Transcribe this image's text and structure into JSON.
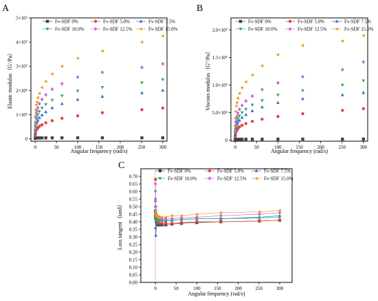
{
  "chart_data": [
    {
      "panel": "A",
      "type": "scatter",
      "xlabel": "Angular frequency (rad/s)",
      "ylabel": "Elastic modulus（G′/Pa）",
      "xlim": [
        -10,
        310
      ],
      "ylim": [
        -10000,
        500000
      ],
      "xticks": [
        0,
        50,
        100,
        150,
        200,
        250,
        300
      ],
      "yticks": [
        {
          "v": 0,
          "l": "0"
        },
        {
          "v": 100000,
          "l": "1×10⁵"
        },
        {
          "v": 200000,
          "l": "2×10⁵"
        },
        {
          "v": 300000,
          "l": "3×10⁵"
        },
        {
          "v": 400000,
          "l": "4×10⁵"
        },
        {
          "v": 500000,
          "l": "5×10⁵"
        }
      ],
      "x": [
        0.1,
        0.4,
        1,
        2.5,
        4,
        6.3,
        10,
        16,
        25,
        40,
        63,
        100,
        158,
        251,
        300
      ],
      "series": [
        {
          "name": "Fv-SDF 0%",
          "values": [
            2000,
            2500,
            3000,
            3200,
            3300,
            3400,
            3500,
            3600,
            3700,
            3800,
            3900,
            4000,
            4000,
            4000,
            4000
          ]
        },
        {
          "name": "Fv-SDF 5.0%",
          "values": [
            12000,
            22000,
            30000,
            37000,
            40000,
            45000,
            52000,
            58000,
            66000,
            75000,
            85000,
            95000,
            108000,
            120000,
            127000
          ]
        },
        {
          "name": "Fv-SDF 7.5%",
          "values": [
            22000,
            38000,
            52000,
            63000,
            68000,
            76000,
            87000,
            98000,
            111000,
            128000,
            145000,
            162000,
            175000,
            190000,
            200000
          ]
        },
        {
          "name": "Fv-SDF 10.0%",
          "values": [
            30000,
            52000,
            68000,
            82000,
            90000,
            100000,
            113000,
            127000,
            142000,
            160000,
            178000,
            198000,
            213000,
            232000,
            245000
          ]
        },
        {
          "name": "Fv-SDF 12.5%",
          "values": [
            40000,
            68000,
            88000,
            106000,
            115000,
            128000,
            145000,
            163000,
            182000,
            205000,
            228000,
            255000,
            275000,
            295000,
            310000
          ]
        },
        {
          "name": "Fv-SDF 15.0%",
          "values": [
            60000,
            95000,
            120000,
            140000,
            152000,
            170000,
            188000,
            212000,
            237000,
            268000,
            300000,
            333000,
            363000,
            400000,
            425000
          ]
        }
      ]
    },
    {
      "panel": "B",
      "type": "scatter",
      "xlabel": "Angular frequency (rad/s)",
      "ylabel": "Viscous modulus（G″/Pa）",
      "xlim": [
        -10,
        310
      ],
      "ylim": [
        -2000,
        222000
      ],
      "xticks": [
        0,
        50,
        100,
        150,
        200,
        250,
        300
      ],
      "yticks": [
        {
          "v": 0,
          "l": "0"
        },
        {
          "v": 50000,
          "l": "5.0×10⁴"
        },
        {
          "v": 100000,
          "l": "1.0×10⁵"
        },
        {
          "v": 150000,
          "l": "1.5×10⁵"
        },
        {
          "v": 200000,
          "l": "2.0×10⁵"
        }
      ],
      "x": [
        0.1,
        0.4,
        1,
        2.5,
        4,
        6.3,
        10,
        16,
        25,
        40,
        63,
        100,
        158,
        251,
        300
      ],
      "series": [
        {
          "name": "Fv-SDF 0%",
          "values": [
            800,
            1000,
            1200,
            1300,
            1400,
            1500,
            1500,
            1600,
            1600,
            1700,
            1700,
            1800,
            1800,
            1800,
            1800
          ]
        },
        {
          "name": "Fv-SDF 5.0%",
          "values": [
            6000,
            10000,
            13000,
            16000,
            18000,
            21000,
            24000,
            27000,
            30000,
            34000,
            38000,
            43000,
            48000,
            54000,
            57000
          ]
        },
        {
          "name": "Fv-SDF 7.5%",
          "values": [
            10000,
            16000,
            21000,
            25000,
            28000,
            32000,
            36000,
            41000,
            46000,
            53000,
            60000,
            68000,
            75000,
            82000,
            86000
          ]
        },
        {
          "name": "Fv-SDF 10.0%",
          "values": [
            13000,
            20000,
            26000,
            31000,
            34000,
            39000,
            44000,
            50000,
            56000,
            64000,
            72000,
            82000,
            90000,
            100000,
            108000
          ]
        },
        {
          "name": "Fv-SDF 12.5%",
          "values": [
            17000,
            26000,
            33000,
            39000,
            43000,
            49000,
            56000,
            63000,
            71000,
            80000,
            92000,
            104000,
            115000,
            128000,
            142000
          ]
        },
        {
          "name": "Fv-SDF 15.0%",
          "values": [
            25000,
            40000,
            52000,
            62000,
            68000,
            76000,
            85000,
            95000,
            106000,
            118000,
            135000,
            155000,
            172000,
            180000,
            190000
          ]
        }
      ]
    },
    {
      "panel": "C",
      "type": "line",
      "xlabel": "Angular frequency (rad/s)",
      "ylabel": "Loss tangent（tanδ）",
      "xlim": [
        -35,
        330
      ],
      "ylim": [
        0,
        0.75
      ],
      "xticks": [
        0,
        50,
        100,
        150,
        200,
        250,
        300
      ],
      "yticks": [
        {
          "v": 0,
          "l": "0.00"
        },
        {
          "v": 0.05,
          "l": "0.05"
        },
        {
          "v": 0.1,
          "l": "0.10"
        },
        {
          "v": 0.15,
          "l": "0.15"
        },
        {
          "v": 0.2,
          "l": "0.20"
        },
        {
          "v": 0.25,
          "l": "0.25"
        },
        {
          "v": 0.3,
          "l": "0.30"
        },
        {
          "v": 0.35,
          "l": "0.35"
        },
        {
          "v": 0.4,
          "l": "0.40"
        },
        {
          "v": 0.45,
          "l": "0.45"
        },
        {
          "v": 0.5,
          "l": "0.50"
        },
        {
          "v": 0.55,
          "l": "0.55"
        },
        {
          "v": 0.6,
          "l": "0.60"
        },
        {
          "v": 0.65,
          "l": "0.65"
        },
        {
          "v": 0.7,
          "l": "0.70"
        }
      ],
      "x": [
        0.1,
        0.4,
        1,
        2.5,
        4,
        6.3,
        10,
        16,
        25,
        40,
        63,
        100,
        158,
        251,
        300
      ],
      "series": [
        {
          "name": "Fv-SDF 0%",
          "values": [
            0.47,
            0.44,
            0.42,
            0.4,
            0.39,
            0.38,
            0.38,
            0.38,
            0.38,
            0.385,
            0.39,
            0.395,
            0.4,
            0.405,
            0.41
          ]
        },
        {
          "name": "Fv-SDF 5.0%",
          "values": [
            0.68,
            0.5,
            0.44,
            0.41,
            0.4,
            0.39,
            0.39,
            0.39,
            0.39,
            0.39,
            0.395,
            0.4,
            0.4,
            0.405,
            0.41
          ]
        },
        {
          "name": "Fv-SDF 7.5%",
          "values": [
            0.54,
            0.36,
            0.31,
            0.4,
            0.41,
            0.41,
            0.41,
            0.41,
            0.405,
            0.41,
            0.415,
            0.42,
            0.42,
            0.43,
            0.44
          ]
        },
        {
          "name": "Fv-SDF 10.0%",
          "values": [
            0.6,
            0.45,
            0.41,
            0.41,
            0.41,
            0.41,
            0.41,
            0.41,
            0.41,
            0.41,
            0.415,
            0.42,
            0.42,
            0.425,
            0.43
          ]
        },
        {
          "name": "Fv-SDF 12.5%",
          "values": [
            0.65,
            0.55,
            0.5,
            0.45,
            0.44,
            0.43,
            0.43,
            0.42,
            0.42,
            0.42,
            0.425,
            0.43,
            0.44,
            0.45,
            0.46
          ]
        },
        {
          "name": "Fv-SDF 15.0%",
          "values": [
            0.47,
            0.45,
            0.44,
            0.44,
            0.43,
            0.43,
            0.43,
            0.43,
            0.43,
            0.44,
            0.44,
            0.45,
            0.46,
            0.465,
            0.475
          ]
        }
      ]
    }
  ],
  "colors": {
    "Fv-SDF 0%": "#444444",
    "Fv-SDF 5.0%": "#e8413c",
    "Fv-SDF 7.5%": "#2a6fc9",
    "Fv-SDF 10.0%": "#2ea86b",
    "Fv-SDF 12.5%": "#c16be0",
    "Fv-SDF 15.0%": "#e69a1e"
  },
  "markers": {
    "Fv-SDF 0%": "square",
    "Fv-SDF 5.0%": "circle",
    "Fv-SDF 7.5%": "triangle-up",
    "Fv-SDF 10.0%": "triangle-down",
    "Fv-SDF 12.5%": "diamond",
    "Fv-SDF 15.0%": "triangle-left"
  },
  "legend": [
    "Fv-SDF 0%",
    "Fv-SDF 5.0%",
    "Fv-SDF 7.5%",
    "Fv-SDF 10.0%",
    "Fv-SDF 12.5%",
    "Fv-SDF 15.0%"
  ]
}
